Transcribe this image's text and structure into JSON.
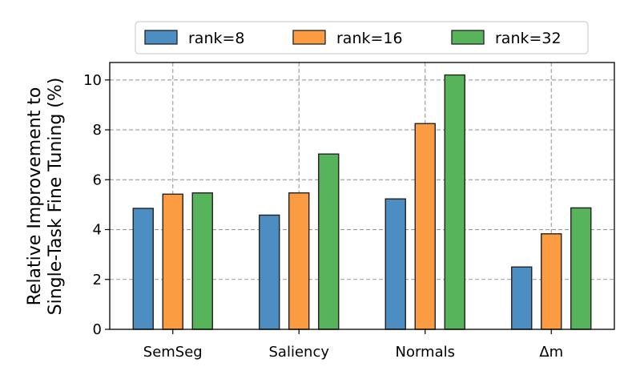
{
  "chart_data": {
    "type": "bar",
    "title": "",
    "xlabel": "",
    "ylabel_lines": [
      "Relative Improvement to",
      "Single-Task Fine Tuning (%)"
    ],
    "categories": [
      "SemSeg",
      "Saliency",
      "Normals",
      "Δm"
    ],
    "series": [
      {
        "name": "rank=8",
        "color": "#4c8ec2",
        "values": [
          4.85,
          4.58,
          5.23,
          2.5
        ]
      },
      {
        "name": "rank=16",
        "color": "#fb9b42",
        "values": [
          5.42,
          5.47,
          8.25,
          3.83
        ]
      },
      {
        "name": "rank=32",
        "color": "#58b45a",
        "values": [
          5.47,
          7.03,
          10.2,
          4.87
        ]
      }
    ],
    "ylim": [
      0,
      10.7
    ],
    "yticks": [
      0,
      2,
      4,
      6,
      8,
      10
    ],
    "grid": true,
    "legend_placement": "top-center"
  }
}
